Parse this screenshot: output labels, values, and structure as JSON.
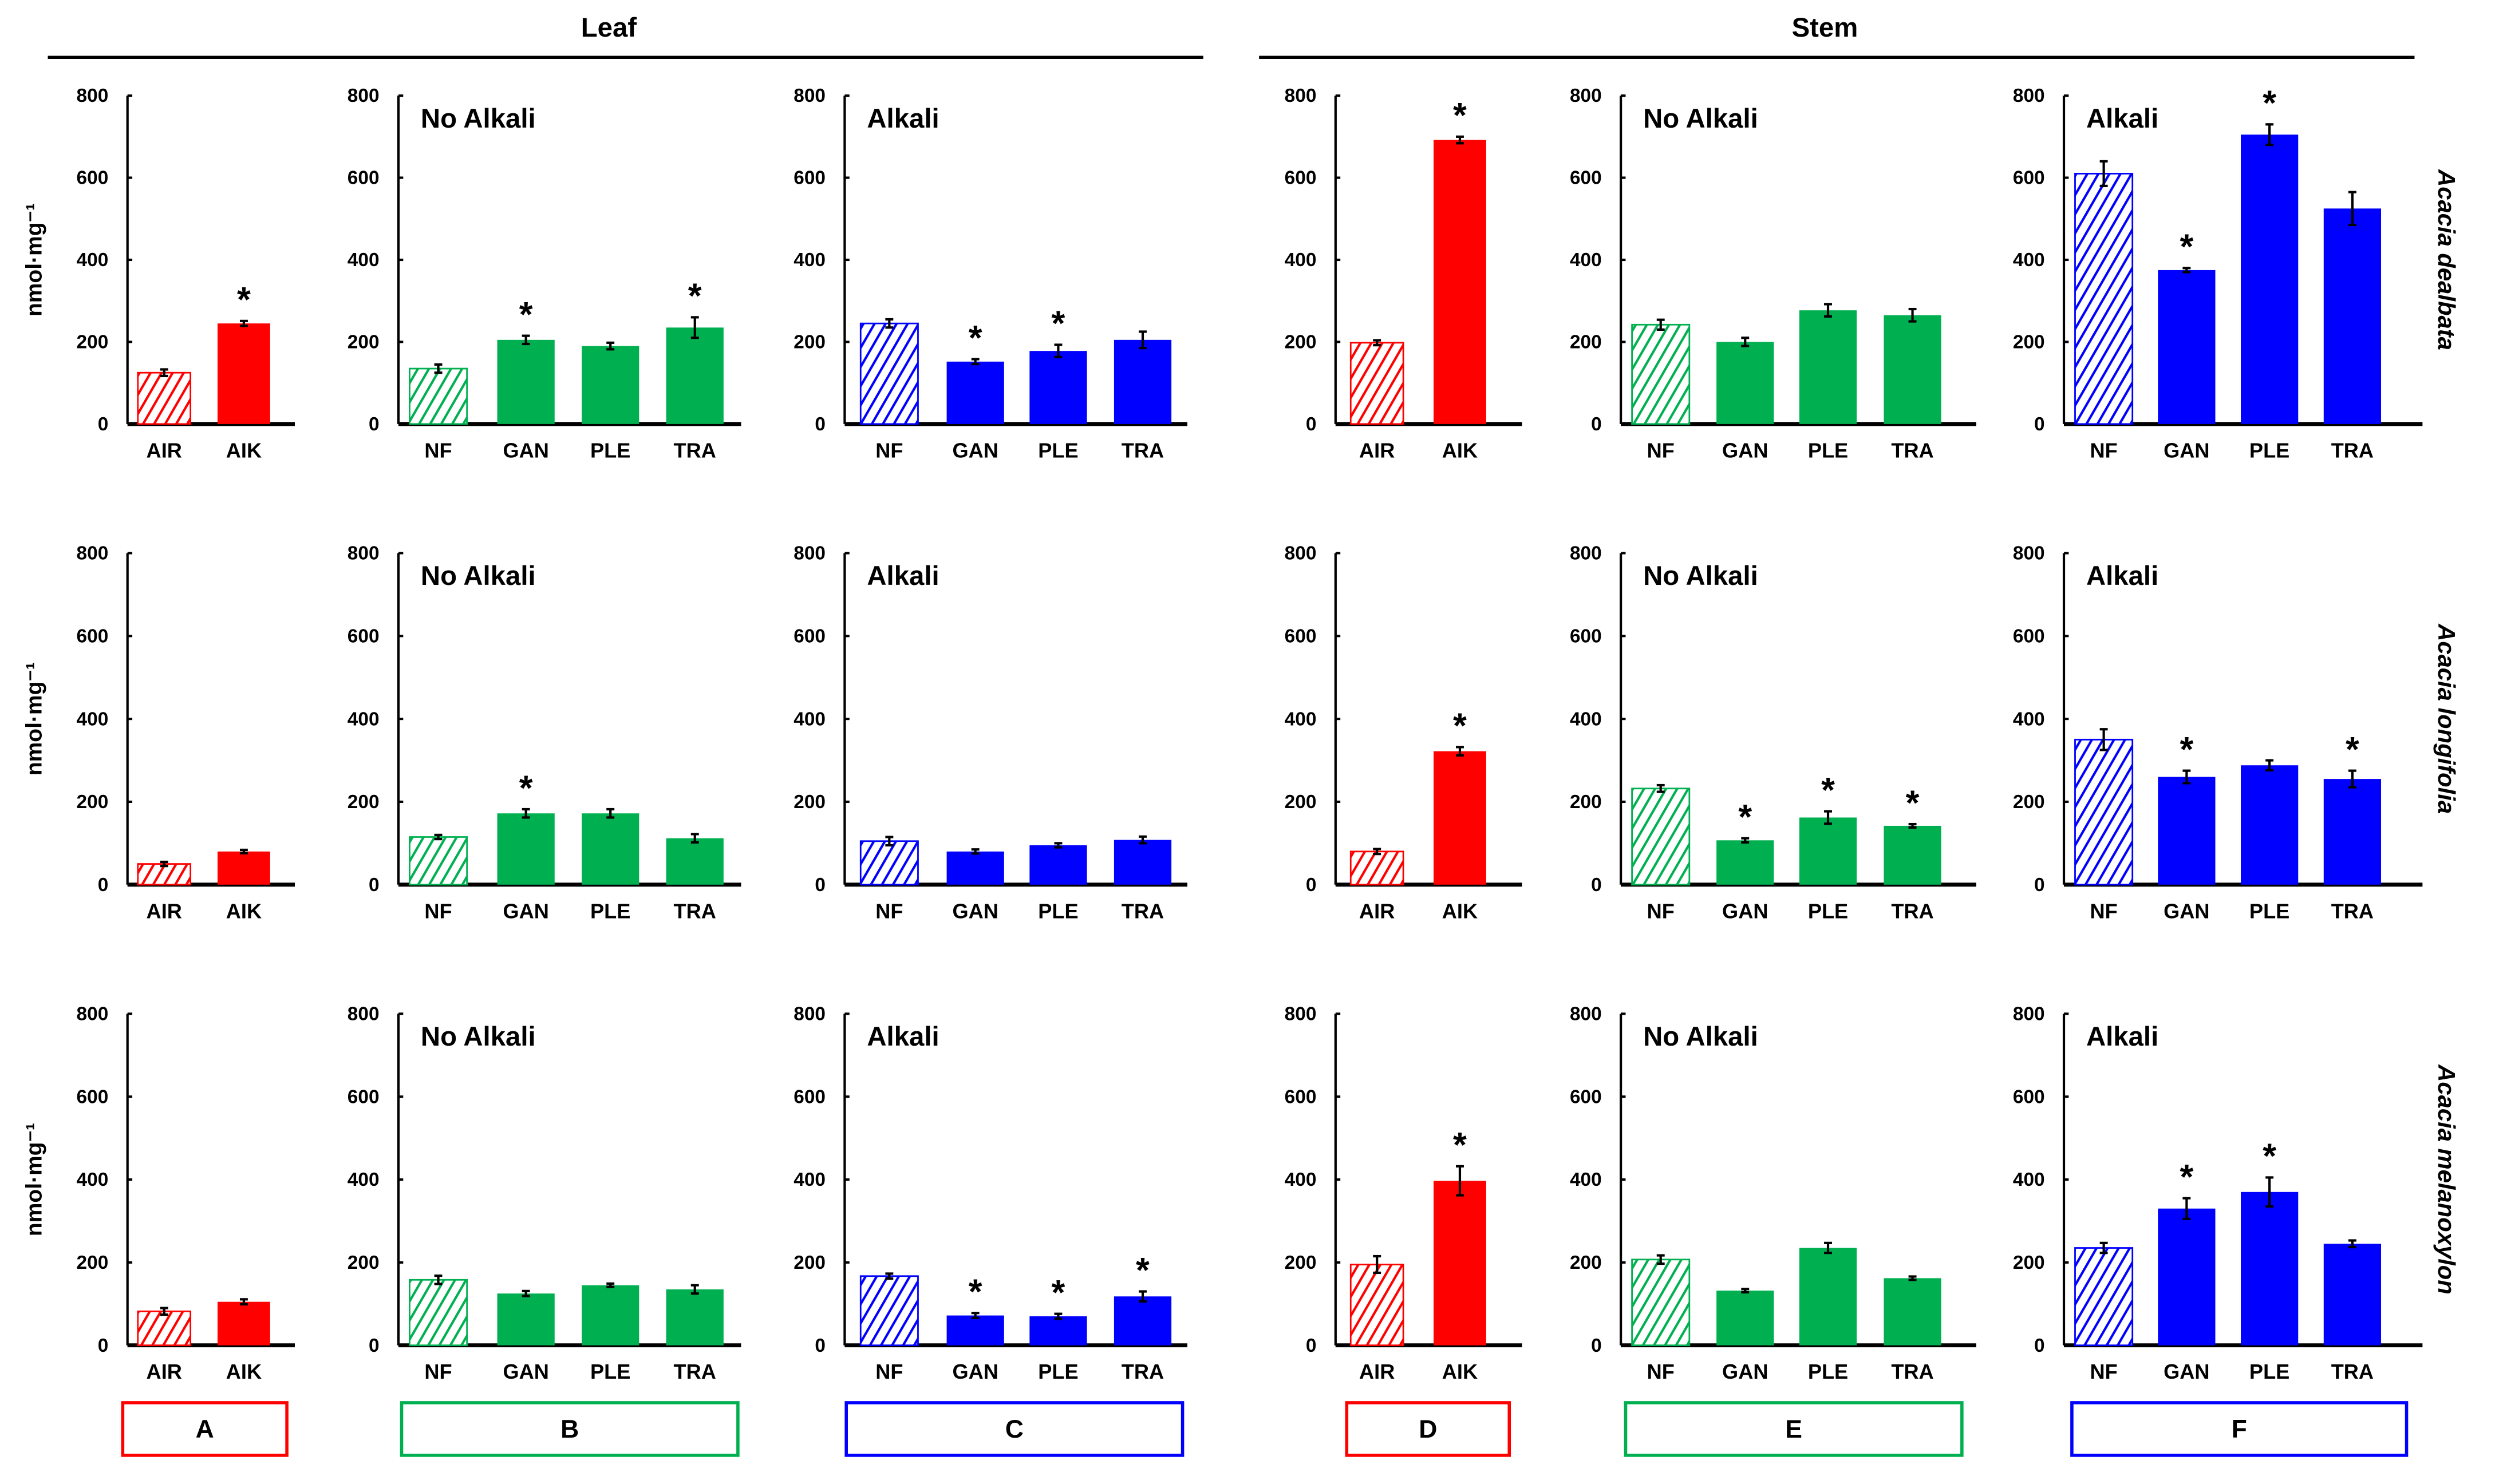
{
  "headers": {
    "leaf": "Leaf",
    "stem": "Stem"
  },
  "ylabel": "nmol·mg⁻¹",
  "species": [
    "Acacia dealbata",
    "Acacia longifolia",
    "Acacia melanoxylon"
  ],
  "panel_letters": [
    "A",
    "B",
    "C",
    "D",
    "E",
    "F"
  ],
  "colors": {
    "A": "#ff0000",
    "B": "#00b050",
    "C": "#0000ff",
    "D": "#ff0000",
    "E": "#00b050",
    "F": "#0000ff"
  },
  "star": "*",
  "chart_data": {
    "type": "bar",
    "ylim": [
      0,
      800
    ],
    "yticks": [
      "0",
      "200",
      "400",
      "600",
      "800"
    ],
    "panels": [
      {
        "row": 0,
        "col": "A",
        "title": "",
        "categories": [
          "AIR",
          "AIK"
        ],
        "values": [
          125,
          245
        ],
        "errors": [
          8,
          6
        ],
        "significant": [
          false,
          true
        ]
      },
      {
        "row": 0,
        "col": "B",
        "title": "No Alkali",
        "categories": [
          "NF",
          "GAN",
          "PLE",
          "TRA"
        ],
        "values": [
          135,
          205,
          190,
          235
        ],
        "errors": [
          10,
          10,
          8,
          25
        ],
        "significant": [
          false,
          true,
          false,
          true
        ]
      },
      {
        "row": 0,
        "col": "C",
        "title": "Alkali",
        "categories": [
          "NF",
          "GAN",
          "PLE",
          "TRA"
        ],
        "values": [
          245,
          152,
          178,
          205
        ],
        "errors": [
          10,
          6,
          15,
          20
        ],
        "significant": [
          false,
          true,
          true,
          false
        ]
      },
      {
        "row": 0,
        "col": "D",
        "title": "",
        "categories": [
          "AIR",
          "AIK"
        ],
        "values": [
          198,
          692
        ],
        "errors": [
          6,
          8
        ],
        "significant": [
          false,
          true
        ]
      },
      {
        "row": 0,
        "col": "E",
        "title": "No Alkali",
        "categories": [
          "NF",
          "GAN",
          "PLE",
          "TRA"
        ],
        "values": [
          242,
          200,
          277,
          265
        ],
        "errors": [
          12,
          10,
          15,
          15
        ],
        "significant": [
          false,
          false,
          false,
          false
        ]
      },
      {
        "row": 0,
        "col": "F",
        "title": "Alkali",
        "categories": [
          "NF",
          "GAN",
          "PLE",
          "TRA"
        ],
        "values": [
          610,
          375,
          705,
          525
        ],
        "errors": [
          30,
          5,
          25,
          40
        ],
        "significant": [
          false,
          true,
          true,
          false
        ]
      },
      {
        "row": 1,
        "col": "A",
        "title": "",
        "categories": [
          "AIR",
          "AIK"
        ],
        "values": [
          50,
          80
        ],
        "errors": [
          5,
          4
        ],
        "significant": [
          false,
          false
        ]
      },
      {
        "row": 1,
        "col": "B",
        "title": "No Alkali",
        "categories": [
          "NF",
          "GAN",
          "PLE",
          "TRA"
        ],
        "values": [
          115,
          172,
          172,
          112
        ],
        "errors": [
          5,
          10,
          10,
          10
        ],
        "significant": [
          false,
          true,
          false,
          false
        ]
      },
      {
        "row": 1,
        "col": "C",
        "title": "Alkali",
        "categories": [
          "NF",
          "GAN",
          "PLE",
          "TRA"
        ],
        "values": [
          105,
          80,
          95,
          108
        ],
        "errors": [
          10,
          5,
          5,
          8
        ],
        "significant": [
          false,
          false,
          false,
          false
        ]
      },
      {
        "row": 1,
        "col": "D",
        "title": "",
        "categories": [
          "AIR",
          "AIK"
        ],
        "values": [
          80,
          322
        ],
        "errors": [
          6,
          10
        ],
        "significant": [
          false,
          true
        ]
      },
      {
        "row": 1,
        "col": "E",
        "title": "No Alkali",
        "categories": [
          "NF",
          "GAN",
          "PLE",
          "TRA"
        ],
        "values": [
          232,
          107,
          162,
          142
        ],
        "errors": [
          8,
          5,
          15,
          4
        ],
        "significant": [
          false,
          true,
          true,
          true
        ]
      },
      {
        "row": 1,
        "col": "F",
        "title": "Alkali",
        "categories": [
          "NF",
          "GAN",
          "PLE",
          "TRA"
        ],
        "values": [
          350,
          260,
          288,
          255
        ],
        "errors": [
          25,
          15,
          12,
          20
        ],
        "significant": [
          false,
          true,
          false,
          true
        ]
      },
      {
        "row": 2,
        "col": "A",
        "title": "",
        "categories": [
          "AIR",
          "AIK"
        ],
        "values": [
          82,
          105
        ],
        "errors": [
          8,
          6
        ],
        "significant": [
          false,
          false
        ]
      },
      {
        "row": 2,
        "col": "B",
        "title": "No Alkali",
        "categories": [
          "NF",
          "GAN",
          "PLE",
          "TRA"
        ],
        "values": [
          158,
          125,
          145,
          135
        ],
        "errors": [
          10,
          6,
          4,
          10
        ],
        "significant": [
          false,
          false,
          false,
          false
        ]
      },
      {
        "row": 2,
        "col": "C",
        "title": "Alkali",
        "categories": [
          "NF",
          "GAN",
          "PLE",
          "TRA"
        ],
        "values": [
          167,
          72,
          70,
          118
        ],
        "errors": [
          6,
          6,
          6,
          12
        ],
        "significant": [
          false,
          true,
          true,
          true
        ]
      },
      {
        "row": 2,
        "col": "D",
        "title": "",
        "categories": [
          "AIR",
          "AIK"
        ],
        "values": [
          195,
          397
        ],
        "errors": [
          20,
          35
        ],
        "significant": [
          false,
          true
        ]
      },
      {
        "row": 2,
        "col": "E",
        "title": "No Alkali",
        "categories": [
          "NF",
          "GAN",
          "PLE",
          "TRA"
        ],
        "values": [
          207,
          132,
          235,
          162
        ],
        "errors": [
          10,
          4,
          12,
          4
        ],
        "significant": [
          false,
          false,
          false,
          false
        ]
      },
      {
        "row": 2,
        "col": "F",
        "title": "Alkali",
        "categories": [
          "NF",
          "GAN",
          "PLE",
          "TRA"
        ],
        "values": [
          235,
          330,
          370,
          245
        ],
        "errors": [
          12,
          25,
          35,
          8
        ],
        "significant": [
          false,
          true,
          true,
          false
        ]
      }
    ]
  }
}
